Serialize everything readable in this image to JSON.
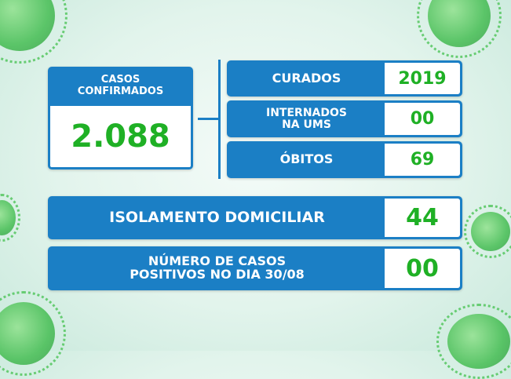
{
  "colors": {
    "blue": "#1b7fc5",
    "green": "#1fb025"
  },
  "confirmed": {
    "label_line1": "CASOS",
    "label_line2": "CONFIRMADOS",
    "value": "2.088"
  },
  "stats": [
    {
      "label_line1": "CURADOS",
      "label_line2": "",
      "value": "2019"
    },
    {
      "label_line1": "INTERNADOS",
      "label_line2": "NA UMS",
      "value": "00"
    },
    {
      "label_line1": "ÓBITOS",
      "label_line2": "",
      "value": "69"
    }
  ],
  "isolation": {
    "label": "ISOLAMENTO DOMICILIAR",
    "value": "44"
  },
  "daily": {
    "label_line1": "NÚMERO DE CASOS",
    "label_line2": "POSITIVOS NO DIA 30/08",
    "value": "00"
  }
}
